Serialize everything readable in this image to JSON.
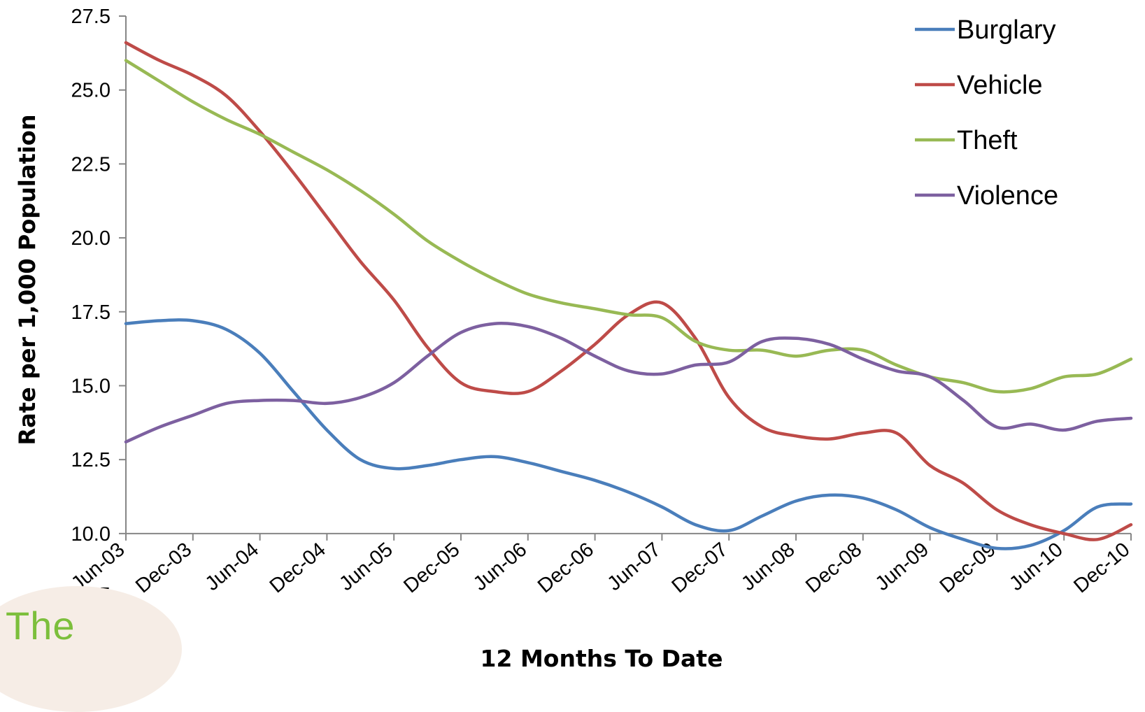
{
  "chart_data": {
    "type": "line",
    "title": "",
    "xlabel": "12 Months To Date",
    "ylabel": "Rate per  1,000 Population",
    "x_ticks": [
      "Jun-03",
      "Dec-03",
      "Jun-04",
      "Dec-04",
      "Jun-05",
      "Dec-05",
      "Jun-06",
      "Dec-06",
      "Jun-07",
      "Dec-07",
      "Jun-08",
      "Dec-08",
      "Jun-09",
      "Dec-09",
      "Jun-10",
      "Dec-10"
    ],
    "y_ticks": [
      "7.5",
      "10.0",
      "12.5",
      "15.0",
      "17.5",
      "20.0",
      "22.5",
      "25.0",
      "27.5"
    ],
    "ylim": [
      7.5,
      27.5
    ],
    "grid": false,
    "legend_position": "top-right",
    "x": [
      "Jun-03",
      "Sep-03",
      "Dec-03",
      "Mar-04",
      "Jun-04",
      "Sep-04",
      "Dec-04",
      "Mar-05",
      "Jun-05",
      "Sep-05",
      "Dec-05",
      "Mar-06",
      "Jun-06",
      "Sep-06",
      "Dec-06",
      "Mar-07",
      "Jun-07",
      "Sep-07",
      "Dec-07",
      "Mar-08",
      "Jun-08",
      "Sep-08",
      "Dec-08",
      "Mar-09",
      "Jun-09",
      "Sep-09",
      "Dec-09",
      "Mar-10",
      "Jun-10",
      "Sep-10",
      "Dec-10"
    ],
    "series": [
      {
        "name": "Burglary",
        "color": "#4a7ebb",
        "values": [
          17.1,
          17.2,
          17.2,
          16.9,
          16.1,
          14.8,
          13.5,
          12.5,
          12.2,
          12.3,
          12.5,
          12.6,
          12.4,
          12.1,
          11.8,
          11.4,
          10.9,
          10.3,
          10.1,
          10.6,
          11.1,
          11.3,
          11.2,
          10.8,
          10.2,
          9.8,
          9.5,
          9.6,
          10.1,
          10.9,
          11.0
        ]
      },
      {
        "name": "Vehicle",
        "color": "#be4b48",
        "values": [
          26.6,
          26.0,
          25.5,
          24.8,
          23.6,
          22.2,
          20.7,
          19.2,
          17.9,
          16.3,
          15.1,
          14.8,
          14.8,
          15.5,
          16.4,
          17.4,
          17.8,
          16.6,
          14.6,
          13.6,
          13.3,
          13.2,
          13.4,
          13.4,
          12.3,
          11.7,
          10.8,
          10.3,
          10.0,
          9.8,
          10.3
        ]
      },
      {
        "name": "Theft",
        "color": "#98b954",
        "values": [
          26.0,
          25.3,
          24.6,
          24.0,
          23.5,
          22.9,
          22.3,
          21.6,
          20.8,
          19.9,
          19.2,
          18.6,
          18.1,
          17.8,
          17.6,
          17.4,
          17.3,
          16.5,
          16.2,
          16.2,
          16.0,
          16.2,
          16.2,
          15.7,
          15.3,
          15.1,
          14.8,
          14.9,
          15.3,
          15.4,
          15.9
        ]
      },
      {
        "name": "Violence",
        "color": "#7d60a0",
        "values": [
          13.1,
          13.6,
          14.0,
          14.4,
          14.5,
          14.5,
          14.4,
          14.6,
          15.1,
          16.0,
          16.8,
          17.1,
          17.0,
          16.6,
          16.0,
          15.5,
          15.4,
          15.7,
          15.8,
          16.5,
          16.6,
          16.4,
          15.9,
          15.5,
          15.3,
          14.5,
          13.6,
          13.7,
          13.5,
          13.8,
          13.9
        ]
      }
    ]
  },
  "logo": {
    "text": "The"
  }
}
